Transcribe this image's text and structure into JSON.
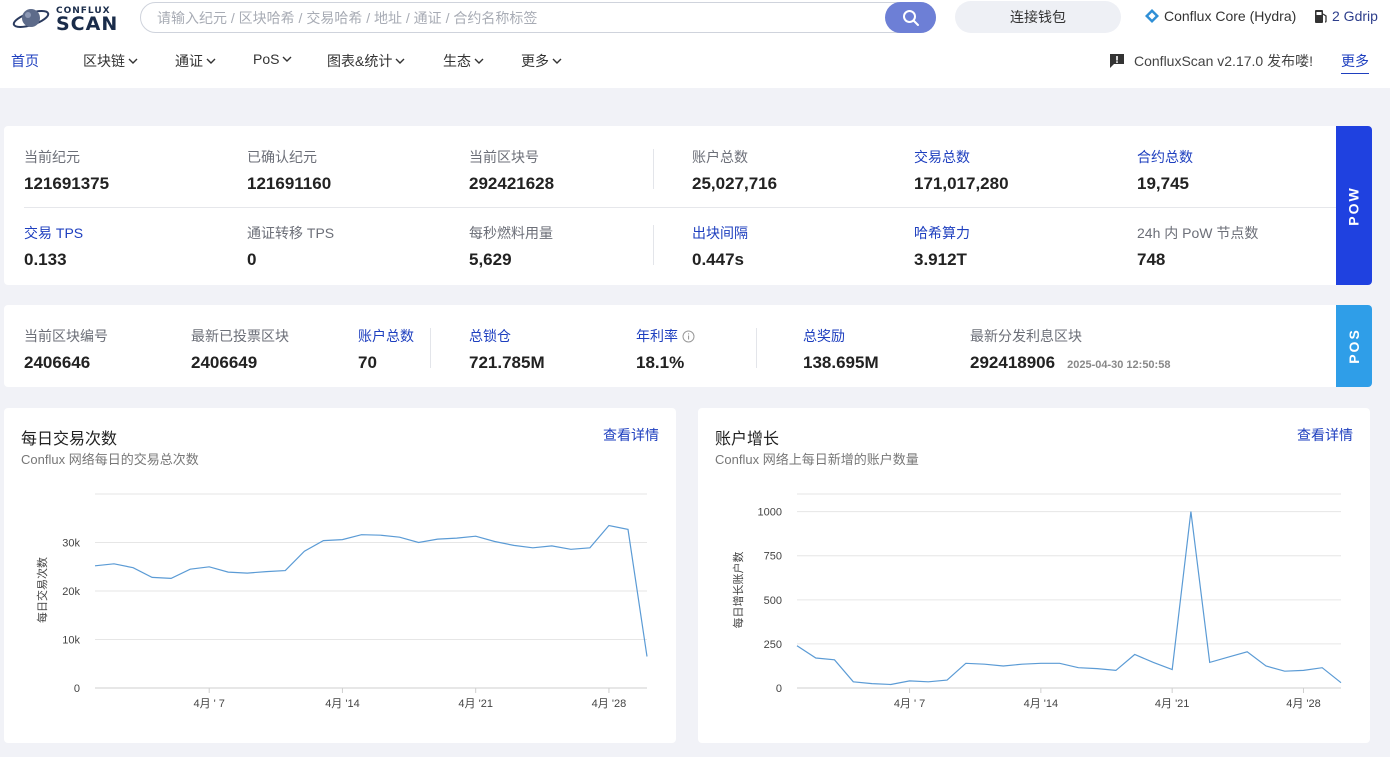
{
  "header": {
    "logo_top": "CONFLUX",
    "logo_bottom": "SCAN",
    "search_placeholder": "请输入纪元 / 区块哈希 / 交易哈希 / 地址 / 通证 / 合约名称标签",
    "connect_wallet": "连接钱包",
    "network": "Conflux Core (Hydra)",
    "gas": "2 Gdrip"
  },
  "nav": {
    "items": [
      {
        "label": "首页",
        "dropdown": false
      },
      {
        "label": "区块链",
        "dropdown": true
      },
      {
        "label": "通证",
        "dropdown": true
      },
      {
        "label": "PoS",
        "dropdown": true
      },
      {
        "label": "图表&统计",
        "dropdown": true
      },
      {
        "label": "生态",
        "dropdown": true
      },
      {
        "label": "更多",
        "dropdown": true
      }
    ],
    "notice": "ConfluxScan v2.17.0 发布喽!",
    "more": "更多"
  },
  "pow": {
    "tab": "POW",
    "row1": [
      {
        "label": "当前纪元",
        "value": "121691375"
      },
      {
        "label": "已确认纪元",
        "value": "121691160"
      },
      {
        "label": "当前区块号",
        "value": "292421628"
      },
      {
        "label": "账户总数",
        "value": "25,027,716"
      },
      {
        "label": "交易总数",
        "value": "171,017,280"
      },
      {
        "label": "合约总数",
        "value": "19,745"
      }
    ],
    "row2": [
      {
        "label": "交易 TPS",
        "value": "0.133"
      },
      {
        "label": "通证转移 TPS",
        "value": "0"
      },
      {
        "label": "每秒燃料用量",
        "value": "5,629"
      },
      {
        "label": "出块间隔",
        "value": "0.447s"
      },
      {
        "label": "哈希算力",
        "value": "3.912T"
      },
      {
        "label": "24h 内 PoW 节点数",
        "value": "748"
      }
    ]
  },
  "pos": {
    "tab": "POS",
    "items": [
      {
        "label": "当前区块编号",
        "value": "2406646"
      },
      {
        "label": "最新已投票区块",
        "value": "2406649"
      },
      {
        "label": "账户总数",
        "value": "70"
      },
      {
        "label": "总锁仓",
        "value": "721.785M"
      },
      {
        "label": "年利率",
        "value": "18.1%"
      },
      {
        "label": "总奖励",
        "value": "138.695M"
      },
      {
        "label": "最新分发利息区块",
        "value": "292418906"
      }
    ],
    "reward_time": "2025-04-30 12:50:58"
  },
  "tx_chart": {
    "title": "每日交易次数",
    "subtitle": "Conflux 网络每日的交易总次数",
    "details": "查看详情"
  },
  "acct_chart": {
    "title": "账户增长",
    "subtitle": "Conflux 网络上每日新增的账户数量",
    "details": "查看详情"
  },
  "chart_data": [
    {
      "type": "line",
      "title": "每日交易次数",
      "ylabel": "每日交易次数",
      "ylim": [
        0,
        40000
      ],
      "yticks": [
        0,
        10000,
        20000,
        30000
      ],
      "ytick_labels": [
        "0",
        "10k",
        "20k",
        "30k"
      ],
      "xticks": [
        "4月 ' 7",
        "4月 '14",
        "4月 '21",
        "4月 '28"
      ],
      "x": [
        "2025-04-01",
        "2025-04-02",
        "2025-04-03",
        "2025-04-04",
        "2025-04-05",
        "2025-04-06",
        "2025-04-07",
        "2025-04-08",
        "2025-04-09",
        "2025-04-10",
        "2025-04-11",
        "2025-04-12",
        "2025-04-13",
        "2025-04-14",
        "2025-04-15",
        "2025-04-16",
        "2025-04-17",
        "2025-04-18",
        "2025-04-19",
        "2025-04-20",
        "2025-04-21",
        "2025-04-22",
        "2025-04-23",
        "2025-04-24",
        "2025-04-25",
        "2025-04-26",
        "2025-04-27",
        "2025-04-28",
        "2025-04-29",
        "2025-04-30"
      ],
      "series": [
        {
          "values": [
            25200,
            25600,
            24800,
            22800,
            22600,
            24500,
            25000,
            23900,
            23700,
            24000,
            24200,
            28200,
            30400,
            30600,
            31600,
            31500,
            31100,
            30000,
            30700,
            30900,
            31300,
            30200,
            29400,
            28900,
            29300,
            28600,
            28900,
            33500,
            32700,
            6500
          ]
        }
      ],
      "color": "#5b9bd5",
      "grid": true
    },
    {
      "type": "line",
      "title": "账户增长",
      "ylabel": "每日增长账户数",
      "ylim": [
        0,
        1100
      ],
      "yticks": [
        0,
        250,
        500,
        750,
        1000
      ],
      "ytick_labels": [
        "0",
        "250",
        "500",
        "750",
        "1000"
      ],
      "xticks": [
        "4月 ' 7",
        "4月 '14",
        "4月 '21",
        "4月 '28"
      ],
      "x": [
        "2025-04-01",
        "2025-04-02",
        "2025-04-03",
        "2025-04-04",
        "2025-04-05",
        "2025-04-06",
        "2025-04-07",
        "2025-04-08",
        "2025-04-09",
        "2025-04-10",
        "2025-04-11",
        "2025-04-12",
        "2025-04-13",
        "2025-04-14",
        "2025-04-15",
        "2025-04-16",
        "2025-04-17",
        "2025-04-18",
        "2025-04-19",
        "2025-04-20",
        "2025-04-21",
        "2025-04-22",
        "2025-04-23",
        "2025-04-24",
        "2025-04-25",
        "2025-04-26",
        "2025-04-27",
        "2025-04-28",
        "2025-04-29",
        "2025-04-30"
      ],
      "series": [
        {
          "values": [
            240,
            170,
            160,
            35,
            25,
            20,
            40,
            35,
            45,
            140,
            135,
            125,
            135,
            140,
            140,
            115,
            110,
            100,
            190,
            145,
            105,
            1000,
            145,
            175,
            205,
            125,
            95,
            100,
            115,
            30
          ]
        }
      ],
      "color": "#5b9bd5",
      "grid": true
    }
  ]
}
